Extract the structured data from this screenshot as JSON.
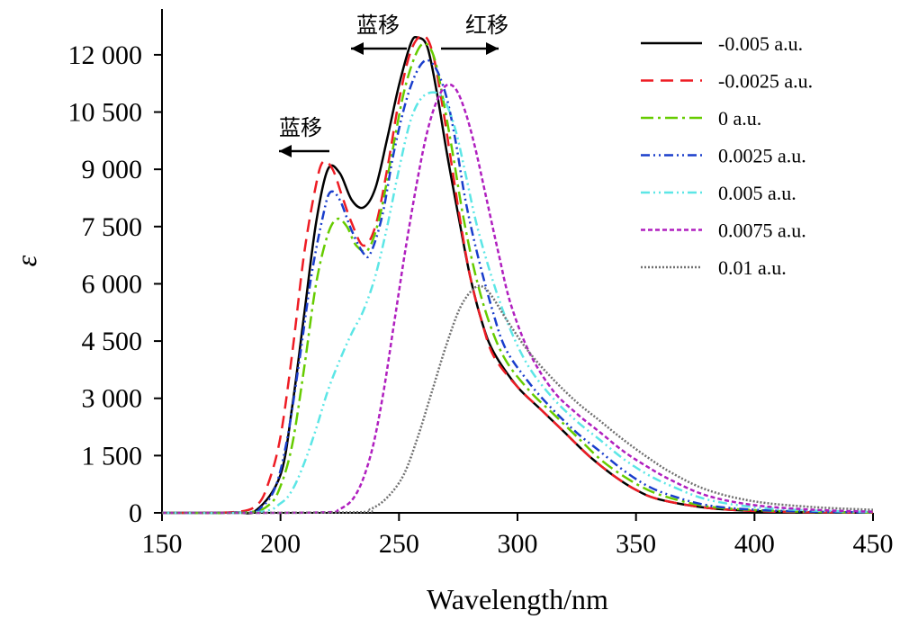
{
  "chart_data": {
    "type": "line",
    "xlabel": "Wavelength/nm",
    "ylabel": "ε",
    "xlim": [
      150,
      450
    ],
    "ylim": [
      0,
      13200
    ],
    "x_ticks": [
      "150",
      "200",
      "250",
      "300",
      "350",
      "400",
      "450"
    ],
    "y_ticks": [
      "0",
      "1 500",
      "3 000",
      "4 500",
      "6 000",
      "7 500",
      "9 000",
      "10 500",
      "12 000"
    ],
    "legend_position": "top-right",
    "grid": false,
    "annotations": [
      {
        "text": "蓝移",
        "arrow": "left"
      },
      {
        "text": "蓝移",
        "arrow": "left"
      },
      {
        "text": "红移",
        "arrow": "right"
      }
    ],
    "series": [
      {
        "name": "-0.005 a.u.",
        "color": "#000000",
        "dash": "solid",
        "points": [
          [
            150,
            0
          ],
          [
            180,
            10
          ],
          [
            190,
            80
          ],
          [
            200,
            1000
          ],
          [
            205,
            2800
          ],
          [
            210,
            5200
          ],
          [
            215,
            7600
          ],
          [
            220,
            9000
          ],
          [
            225,
            8900
          ],
          [
            230,
            8200
          ],
          [
            235,
            8000
          ],
          [
            240,
            8500
          ],
          [
            245,
            9800
          ],
          [
            250,
            11200
          ],
          [
            255,
            12300
          ],
          [
            258,
            12450
          ],
          [
            262,
            12200
          ],
          [
            266,
            11000
          ],
          [
            270,
            9500
          ],
          [
            275,
            7800
          ],
          [
            280,
            6200
          ],
          [
            285,
            5000
          ],
          [
            290,
            4200
          ],
          [
            300,
            3300
          ],
          [
            310,
            2700
          ],
          [
            320,
            2100
          ],
          [
            330,
            1500
          ],
          [
            340,
            1000
          ],
          [
            350,
            600
          ],
          [
            360,
            350
          ],
          [
            380,
            130
          ],
          [
            400,
            50
          ],
          [
            420,
            20
          ],
          [
            450,
            10
          ]
        ]
      },
      {
        "name": "-0.0025 a.u.",
        "color": "#ee1c24",
        "dash": "14 8",
        "points": [
          [
            150,
            0
          ],
          [
            180,
            20
          ],
          [
            190,
            200
          ],
          [
            195,
            800
          ],
          [
            200,
            2000
          ],
          [
            205,
            4200
          ],
          [
            210,
            6800
          ],
          [
            215,
            8600
          ],
          [
            218,
            9200
          ],
          [
            222,
            9000
          ],
          [
            226,
            8300
          ],
          [
            230,
            7600
          ],
          [
            235,
            7000
          ],
          [
            240,
            7500
          ],
          [
            245,
            9000
          ],
          [
            250,
            10800
          ],
          [
            255,
            12100
          ],
          [
            260,
            12500
          ],
          [
            264,
            12100
          ],
          [
            268,
            10800
          ],
          [
            272,
            9200
          ],
          [
            276,
            7600
          ],
          [
            280,
            6200
          ],
          [
            285,
            5000
          ],
          [
            290,
            4100
          ],
          [
            300,
            3300
          ],
          [
            310,
            2700
          ],
          [
            320,
            2100
          ],
          [
            330,
            1500
          ],
          [
            340,
            1000
          ],
          [
            350,
            600
          ],
          [
            360,
            350
          ],
          [
            380,
            130
          ],
          [
            400,
            50
          ],
          [
            420,
            20
          ],
          [
            450,
            10
          ]
        ]
      },
      {
        "name": "0 a.u.",
        "color": "#66cc00",
        "dash": "14 5 3 5",
        "points": [
          [
            150,
            0
          ],
          [
            185,
            10
          ],
          [
            195,
            200
          ],
          [
            200,
            700
          ],
          [
            205,
            1800
          ],
          [
            210,
            3800
          ],
          [
            215,
            6000
          ],
          [
            220,
            7300
          ],
          [
            224,
            7700
          ],
          [
            228,
            7500
          ],
          [
            232,
            7000
          ],
          [
            237,
            6900
          ],
          [
            242,
            7800
          ],
          [
            247,
            9400
          ],
          [
            252,
            11000
          ],
          [
            257,
            12000
          ],
          [
            261,
            12300
          ],
          [
            265,
            11900
          ],
          [
            269,
            10700
          ],
          [
            273,
            9300
          ],
          [
            277,
            7800
          ],
          [
            282,
            6300
          ],
          [
            288,
            5000
          ],
          [
            295,
            4000
          ],
          [
            305,
            3200
          ],
          [
            315,
            2600
          ],
          [
            325,
            2000
          ],
          [
            335,
            1400
          ],
          [
            345,
            950
          ],
          [
            355,
            600
          ],
          [
            365,
            380
          ],
          [
            380,
            170
          ],
          [
            400,
            70
          ],
          [
            425,
            25
          ],
          [
            450,
            10
          ]
        ]
      },
      {
        "name": "0.0025 a.u.",
        "color": "#1a3ecc",
        "dash": "10 4 2 4 2 4",
        "points": [
          [
            150,
            0
          ],
          [
            185,
            10
          ],
          [
            192,
            150
          ],
          [
            198,
            700
          ],
          [
            203,
            2000
          ],
          [
            208,
            4000
          ],
          [
            213,
            6200
          ],
          [
            218,
            7800
          ],
          [
            221,
            8400
          ],
          [
            225,
            8200
          ],
          [
            230,
            7400
          ],
          [
            235,
            6800
          ],
          [
            238,
            6800
          ],
          [
            243,
            7800
          ],
          [
            248,
            9500
          ],
          [
            254,
            11000
          ],
          [
            260,
            11800
          ],
          [
            265,
            11700
          ],
          [
            270,
            10900
          ],
          [
            274,
            9700
          ],
          [
            278,
            8200
          ],
          [
            283,
            6800
          ],
          [
            289,
            5400
          ],
          [
            295,
            4300
          ],
          [
            305,
            3400
          ],
          [
            315,
            2700
          ],
          [
            325,
            2100
          ],
          [
            335,
            1600
          ],
          [
            345,
            1100
          ],
          [
            355,
            700
          ],
          [
            365,
            450
          ],
          [
            380,
            200
          ],
          [
            400,
            80
          ],
          [
            425,
            30
          ],
          [
            450,
            15
          ]
        ]
      },
      {
        "name": "0.005 a.u.",
        "color": "#5ce6e6",
        "dash": "10 4 2 4 2 4",
        "points": [
          [
            150,
            0
          ],
          [
            190,
            20
          ],
          [
            200,
            250
          ],
          [
            205,
            600
          ],
          [
            210,
            1300
          ],
          [
            215,
            2200
          ],
          [
            220,
            3200
          ],
          [
            225,
            4000
          ],
          [
            230,
            4700
          ],
          [
            235,
            5300
          ],
          [
            240,
            6200
          ],
          [
            245,
            7500
          ],
          [
            250,
            9000
          ],
          [
            255,
            10300
          ],
          [
            260,
            10900
          ],
          [
            266,
            11000
          ],
          [
            270,
            10700
          ],
          [
            274,
            10000
          ],
          [
            278,
            8900
          ],
          [
            283,
            7500
          ],
          [
            290,
            6000
          ],
          [
            297,
            4800
          ],
          [
            305,
            3800
          ],
          [
            315,
            3000
          ],
          [
            325,
            2400
          ],
          [
            335,
            1900
          ],
          [
            345,
            1400
          ],
          [
            355,
            1000
          ],
          [
            365,
            700
          ],
          [
            380,
            350
          ],
          [
            400,
            150
          ],
          [
            425,
            60
          ],
          [
            450,
            25
          ]
        ]
      },
      {
        "name": "0.0075 a.u.",
        "color": "#b01fbf",
        "dash": "5 3",
        "points": [
          [
            150,
            0
          ],
          [
            215,
            10
          ],
          [
            225,
            100
          ],
          [
            232,
            500
          ],
          [
            238,
            1500
          ],
          [
            243,
            3000
          ],
          [
            248,
            5000
          ],
          [
            253,
            7000
          ],
          [
            258,
            8800
          ],
          [
            262,
            10000
          ],
          [
            266,
            10800
          ],
          [
            270,
            11200
          ],
          [
            274,
            11100
          ],
          [
            278,
            10500
          ],
          [
            282,
            9600
          ],
          [
            287,
            8200
          ],
          [
            292,
            6800
          ],
          [
            297,
            5500
          ],
          [
            305,
            4200
          ],
          [
            315,
            3200
          ],
          [
            325,
            2600
          ],
          [
            335,
            2100
          ],
          [
            345,
            1600
          ],
          [
            355,
            1200
          ],
          [
            365,
            850
          ],
          [
            380,
            450
          ],
          [
            400,
            200
          ],
          [
            425,
            80
          ],
          [
            450,
            30
          ]
        ]
      },
      {
        "name": "0.01 a.u.",
        "color": "#707070",
        "dash": "2 2",
        "points": [
          [
            150,
            0
          ],
          [
            230,
            15
          ],
          [
            238,
            100
          ],
          [
            245,
            400
          ],
          [
            252,
            1000
          ],
          [
            258,
            2000
          ],
          [
            264,
            3200
          ],
          [
            270,
            4400
          ],
          [
            276,
            5400
          ],
          [
            282,
            5900
          ],
          [
            286,
            5900
          ],
          [
            290,
            5600
          ],
          [
            296,
            5000
          ],
          [
            305,
            4200
          ],
          [
            315,
            3500
          ],
          [
            325,
            2900
          ],
          [
            335,
            2400
          ],
          [
            345,
            1900
          ],
          [
            355,
            1450
          ],
          [
            365,
            1050
          ],
          [
            380,
            600
          ],
          [
            400,
            300
          ],
          [
            425,
            150
          ],
          [
            450,
            80
          ]
        ]
      }
    ]
  }
}
